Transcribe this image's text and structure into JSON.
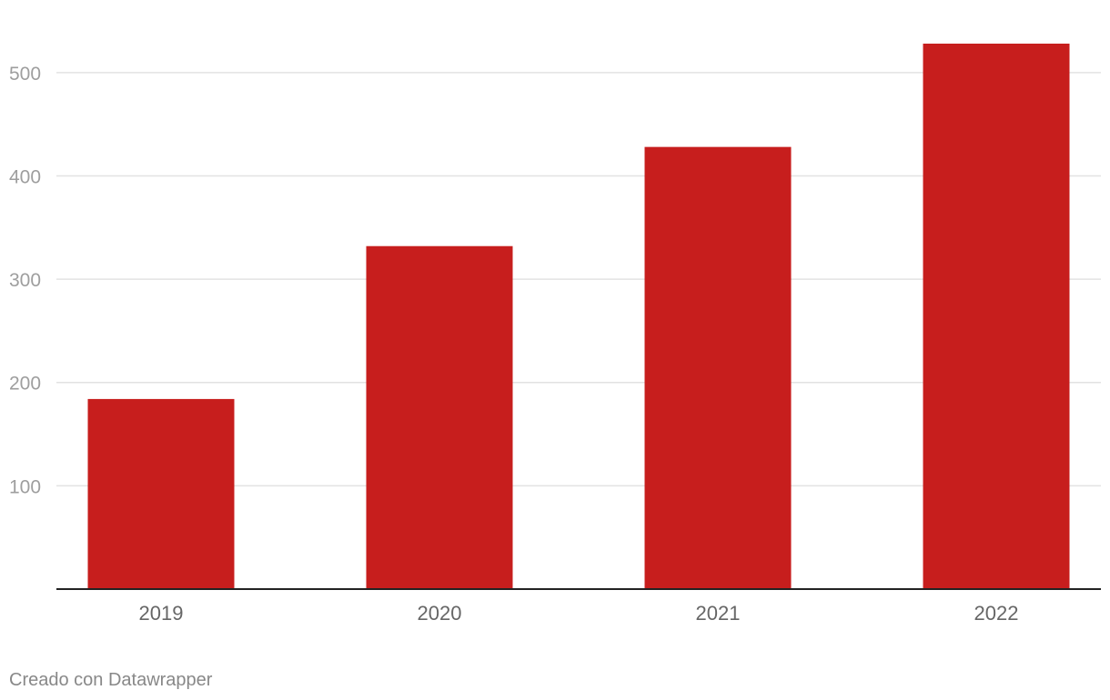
{
  "chart_data": {
    "type": "bar",
    "categories": [
      "2019",
      "2020",
      "2021",
      "2022"
    ],
    "values": [
      184,
      332,
      428,
      528
    ],
    "color": "#c71e1d",
    "ylim": [
      0,
      550
    ],
    "yticks": [
      100,
      200,
      300,
      400,
      500
    ],
    "grid": true,
    "credit": "Creado con Datawrapper"
  }
}
